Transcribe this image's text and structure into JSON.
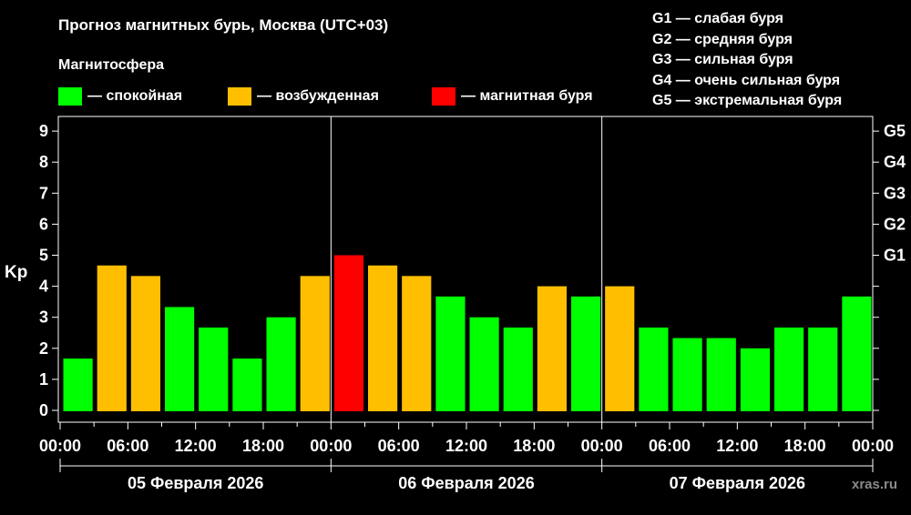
{
  "title": "Прогноз магнитных бурь, Москва (UTC+03)",
  "legend": {
    "heading": "Магнитосфера",
    "items": [
      {
        "label": "— спокойная",
        "color": "#00ff00"
      },
      {
        "label": "— возбужденная",
        "color": "#ffbf00"
      },
      {
        "label": "— магнитная буря",
        "color": "#ff0000"
      }
    ]
  },
  "g_levels": [
    "G1 — слабая буря",
    "G2 — средняя буря",
    "G3 — сильная буря",
    "G4 — очень сильная буря",
    "G5 — экстремальная буря"
  ],
  "source": "xras.ru",
  "chart_data": {
    "type": "bar",
    "ylabel": "Kp",
    "ylim": [
      0,
      9
    ],
    "yticks": [
      0,
      1,
      2,
      3,
      4,
      5,
      6,
      7,
      8,
      9
    ],
    "right_ticks": [
      {
        "value": 5,
        "label": "G1"
      },
      {
        "value": 6,
        "label": "G2"
      },
      {
        "value": 7,
        "label": "G3"
      },
      {
        "value": 8,
        "label": "G4"
      },
      {
        "value": 9,
        "label": "G5"
      }
    ],
    "x_tick_labels": [
      "00:00",
      "06:00",
      "12:00",
      "18:00",
      "00:00",
      "06:00",
      "12:00",
      "18:00",
      "00:00",
      "06:00",
      "12:00",
      "18:00",
      "00:00"
    ],
    "days": [
      "05 Февраля 2026",
      "06 Февраля 2026",
      "07 Февраля 2026"
    ],
    "values": [
      1.67,
      4.67,
      4.33,
      3.33,
      2.67,
      1.67,
      3.0,
      4.33,
      5.0,
      4.67,
      4.33,
      3.67,
      3.0,
      2.67,
      4.0,
      3.67,
      4.0,
      2.67,
      2.33,
      2.33,
      2.0,
      2.67,
      2.67,
      3.67
    ],
    "levels": [
      "quiet",
      "active",
      "active",
      "quiet",
      "quiet",
      "quiet",
      "quiet",
      "active",
      "storm",
      "active",
      "active",
      "quiet",
      "quiet",
      "quiet",
      "active",
      "quiet",
      "active",
      "quiet",
      "quiet",
      "quiet",
      "quiet",
      "quiet",
      "quiet",
      "quiet"
    ],
    "level_colors": {
      "quiet": "#00ff00",
      "active": "#ffbf00",
      "storm": "#ff0000"
    }
  }
}
